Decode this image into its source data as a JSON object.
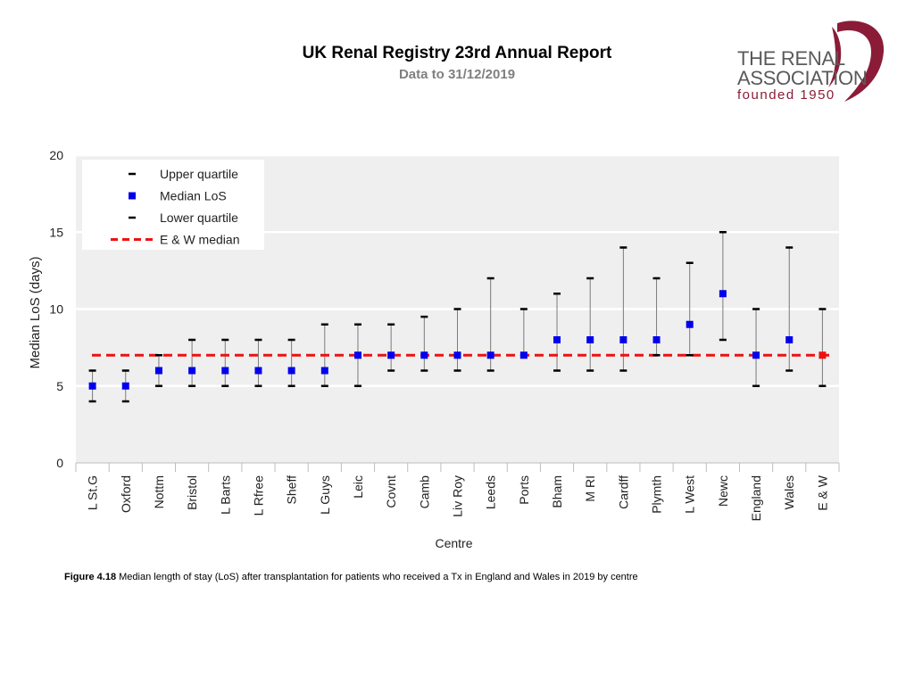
{
  "header": {
    "title": "UK Renal Registry 23rd Annual Report",
    "subtitle": "Data to 31/12/2019"
  },
  "logo": {
    "line1": "THE RENAL",
    "line2": "ASSOCIATION",
    "line3": "founded 1950",
    "color": "#8a1c38"
  },
  "chart_data": {
    "type": "scatter",
    "xlabel": "Centre",
    "ylabel": "Median LoS (days)",
    "ylim": [
      0,
      20
    ],
    "yticks": [
      0,
      5,
      10,
      15,
      20
    ],
    "grid": true,
    "legend_position": "top-left",
    "legend": [
      {
        "label": "Upper quartile",
        "kind": "dash"
      },
      {
        "label": "Median LoS",
        "kind": "square"
      },
      {
        "label": "Lower quartile",
        "kind": "dash"
      },
      {
        "label": "E & W median",
        "kind": "dashed-line"
      }
    ],
    "ew_median": 7,
    "categories": [
      "L St.G",
      "Oxford",
      "Nottm",
      "Bristol",
      "L Barts",
      "L Rfree",
      "Sheff",
      "L Guys",
      "Leic",
      "Covnt",
      "Camb",
      "Liv Roy",
      "Leeds",
      "Ports",
      "Bham",
      "M RI",
      "Cardff",
      "Plymth",
      "L West",
      "Newc",
      "England",
      "Wales",
      "E & W"
    ],
    "median": [
      5,
      5,
      6,
      6,
      6,
      6,
      6,
      6,
      7,
      7,
      7,
      7,
      7,
      7,
      8,
      8,
      8,
      8,
      9,
      11,
      7,
      8,
      7
    ],
    "lower_quartile": [
      4,
      4,
      5,
      5,
      5,
      5,
      5,
      5,
      5,
      6,
      6,
      6,
      6,
      7,
      6,
      6,
      6,
      7,
      7,
      8,
      5,
      6,
      5
    ],
    "upper_quartile": [
      6,
      6,
      7,
      8,
      8,
      8,
      8,
      9,
      9,
      9,
      9.5,
      10,
      12,
      10,
      11,
      12,
      14,
      12,
      13,
      15,
      10,
      14,
      10
    ],
    "colors": {
      "median_marker": "#0000ee",
      "ew_marker": "#ee1111",
      "ew_line": "#ee1111",
      "whisker": "#7a7a7a",
      "quartile_tick": "#000000",
      "plot_bg": "#efefef",
      "grid": "#ffffff"
    }
  },
  "caption": {
    "label": "Figure 4.18",
    "text": " Median length of stay (LoS) after transplantation for patients who received a Tx in England and Wales in 2019 by centre"
  }
}
